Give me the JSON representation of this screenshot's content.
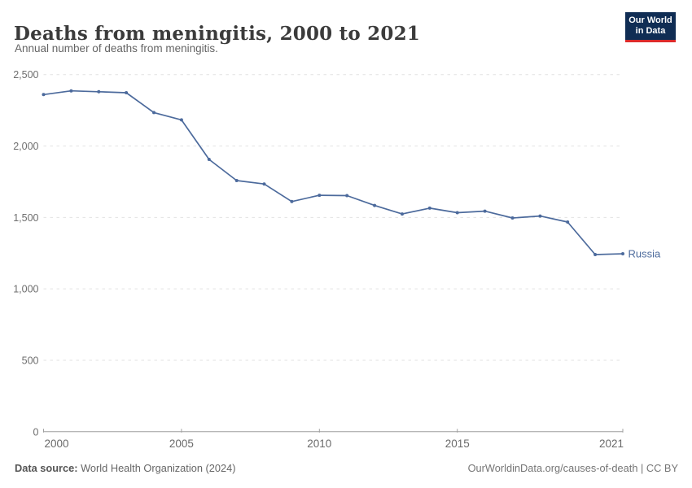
{
  "header": {
    "title": "Deaths from meningitis, 2000 to 2021",
    "subtitle": "Annual number of deaths from meningitis."
  },
  "logo": {
    "line1": "Our World",
    "line2": "in Data",
    "bg_color": "#102d54",
    "accent_color": "#dc2a2a"
  },
  "chart_data": {
    "type": "line",
    "title": "Deaths from meningitis, 2000 to 2021",
    "subtitle": "Annual number of deaths from meningitis.",
    "x": [
      2000,
      2001,
      2002,
      2003,
      2004,
      2005,
      2006,
      2007,
      2008,
      2009,
      2010,
      2011,
      2012,
      2013,
      2014,
      2015,
      2016,
      2017,
      2018,
      2019,
      2020,
      2021
    ],
    "series": [
      {
        "name": "Russia",
        "color": "#4C6A9C",
        "values": [
          2360,
          2386,
          2380,
          2373,
          2234,
          2183,
          1906,
          1758,
          1734,
          1611,
          1655,
          1653,
          1584,
          1524,
          1565,
          1533,
          1544,
          1496,
          1510,
          1468,
          1240,
          1246
        ]
      }
    ],
    "ylim": [
      0,
      2500
    ],
    "yticks": [
      0,
      500,
      1000,
      1500,
      2000,
      2500
    ],
    "ytick_labels": [
      "0",
      "500",
      "1,000",
      "1,500",
      "2,000",
      "2,500"
    ],
    "xticks": [
      2000,
      2005,
      2010,
      2015,
      2021
    ],
    "xlabel": "",
    "ylabel": "",
    "grid": "horizontal-dashed",
    "legend": "end-of-line-label",
    "colors": {
      "gridline": "#e2e2e2",
      "axis": "#9e9e9e",
      "tick_label": "#6e6e6e"
    }
  },
  "footer": {
    "source_label": "Data source:",
    "source_value": " World Health Organization (2024)",
    "link": "OurWorldinData.org/causes-of-death | CC BY"
  }
}
